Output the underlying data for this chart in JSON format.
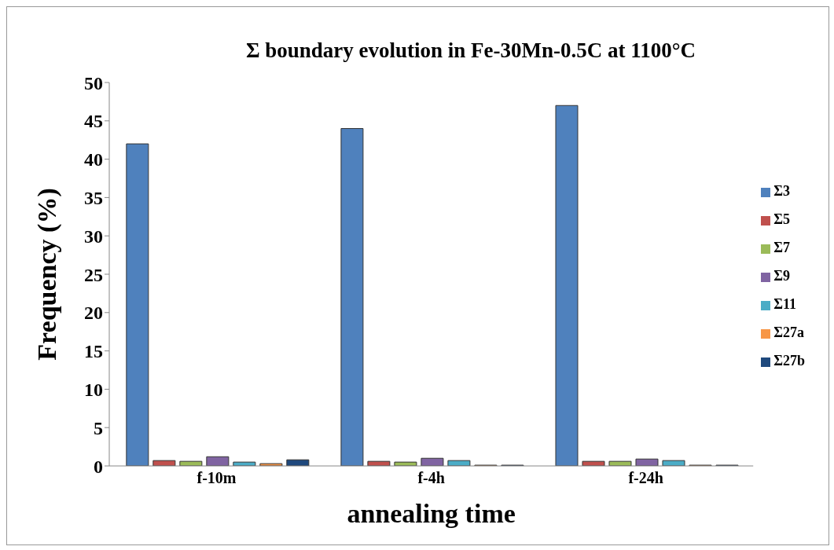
{
  "chart_data": {
    "type": "bar",
    "title": "Σ boundary evolution in Fe-30Mn-0.5C at 1100°C",
    "xlabel": "annealing time",
    "ylabel": "Frequency (%)",
    "categories": [
      "f-10m",
      "f-4h",
      "f-24h"
    ],
    "series": [
      {
        "name": "Σ3",
        "color": "#4f81bd",
        "values": [
          42,
          44,
          47
        ]
      },
      {
        "name": "Σ5",
        "color": "#c0504d",
        "values": [
          0.7,
          0.6,
          0.6
        ]
      },
      {
        "name": "Σ7",
        "color": "#9bbb59",
        "values": [
          0.6,
          0.5,
          0.6
        ]
      },
      {
        "name": "Σ9",
        "color": "#8064a2",
        "values": [
          1.2,
          1.0,
          0.9
        ]
      },
      {
        "name": "Σ11",
        "color": "#4bacc6",
        "values": [
          0.5,
          0.7,
          0.7
        ]
      },
      {
        "name": "Σ27a",
        "color": "#f79646",
        "values": [
          0.3,
          0.1,
          0.1
        ]
      },
      {
        "name": "Σ27b",
        "color": "#1f497d",
        "values": [
          0.8,
          0.1,
          0.1
        ]
      }
    ],
    "ylim": [
      0,
      50
    ],
    "yticks": [
      0,
      5,
      10,
      15,
      20,
      25,
      30,
      35,
      40,
      45,
      50
    ],
    "grid": false,
    "legend": "right"
  }
}
